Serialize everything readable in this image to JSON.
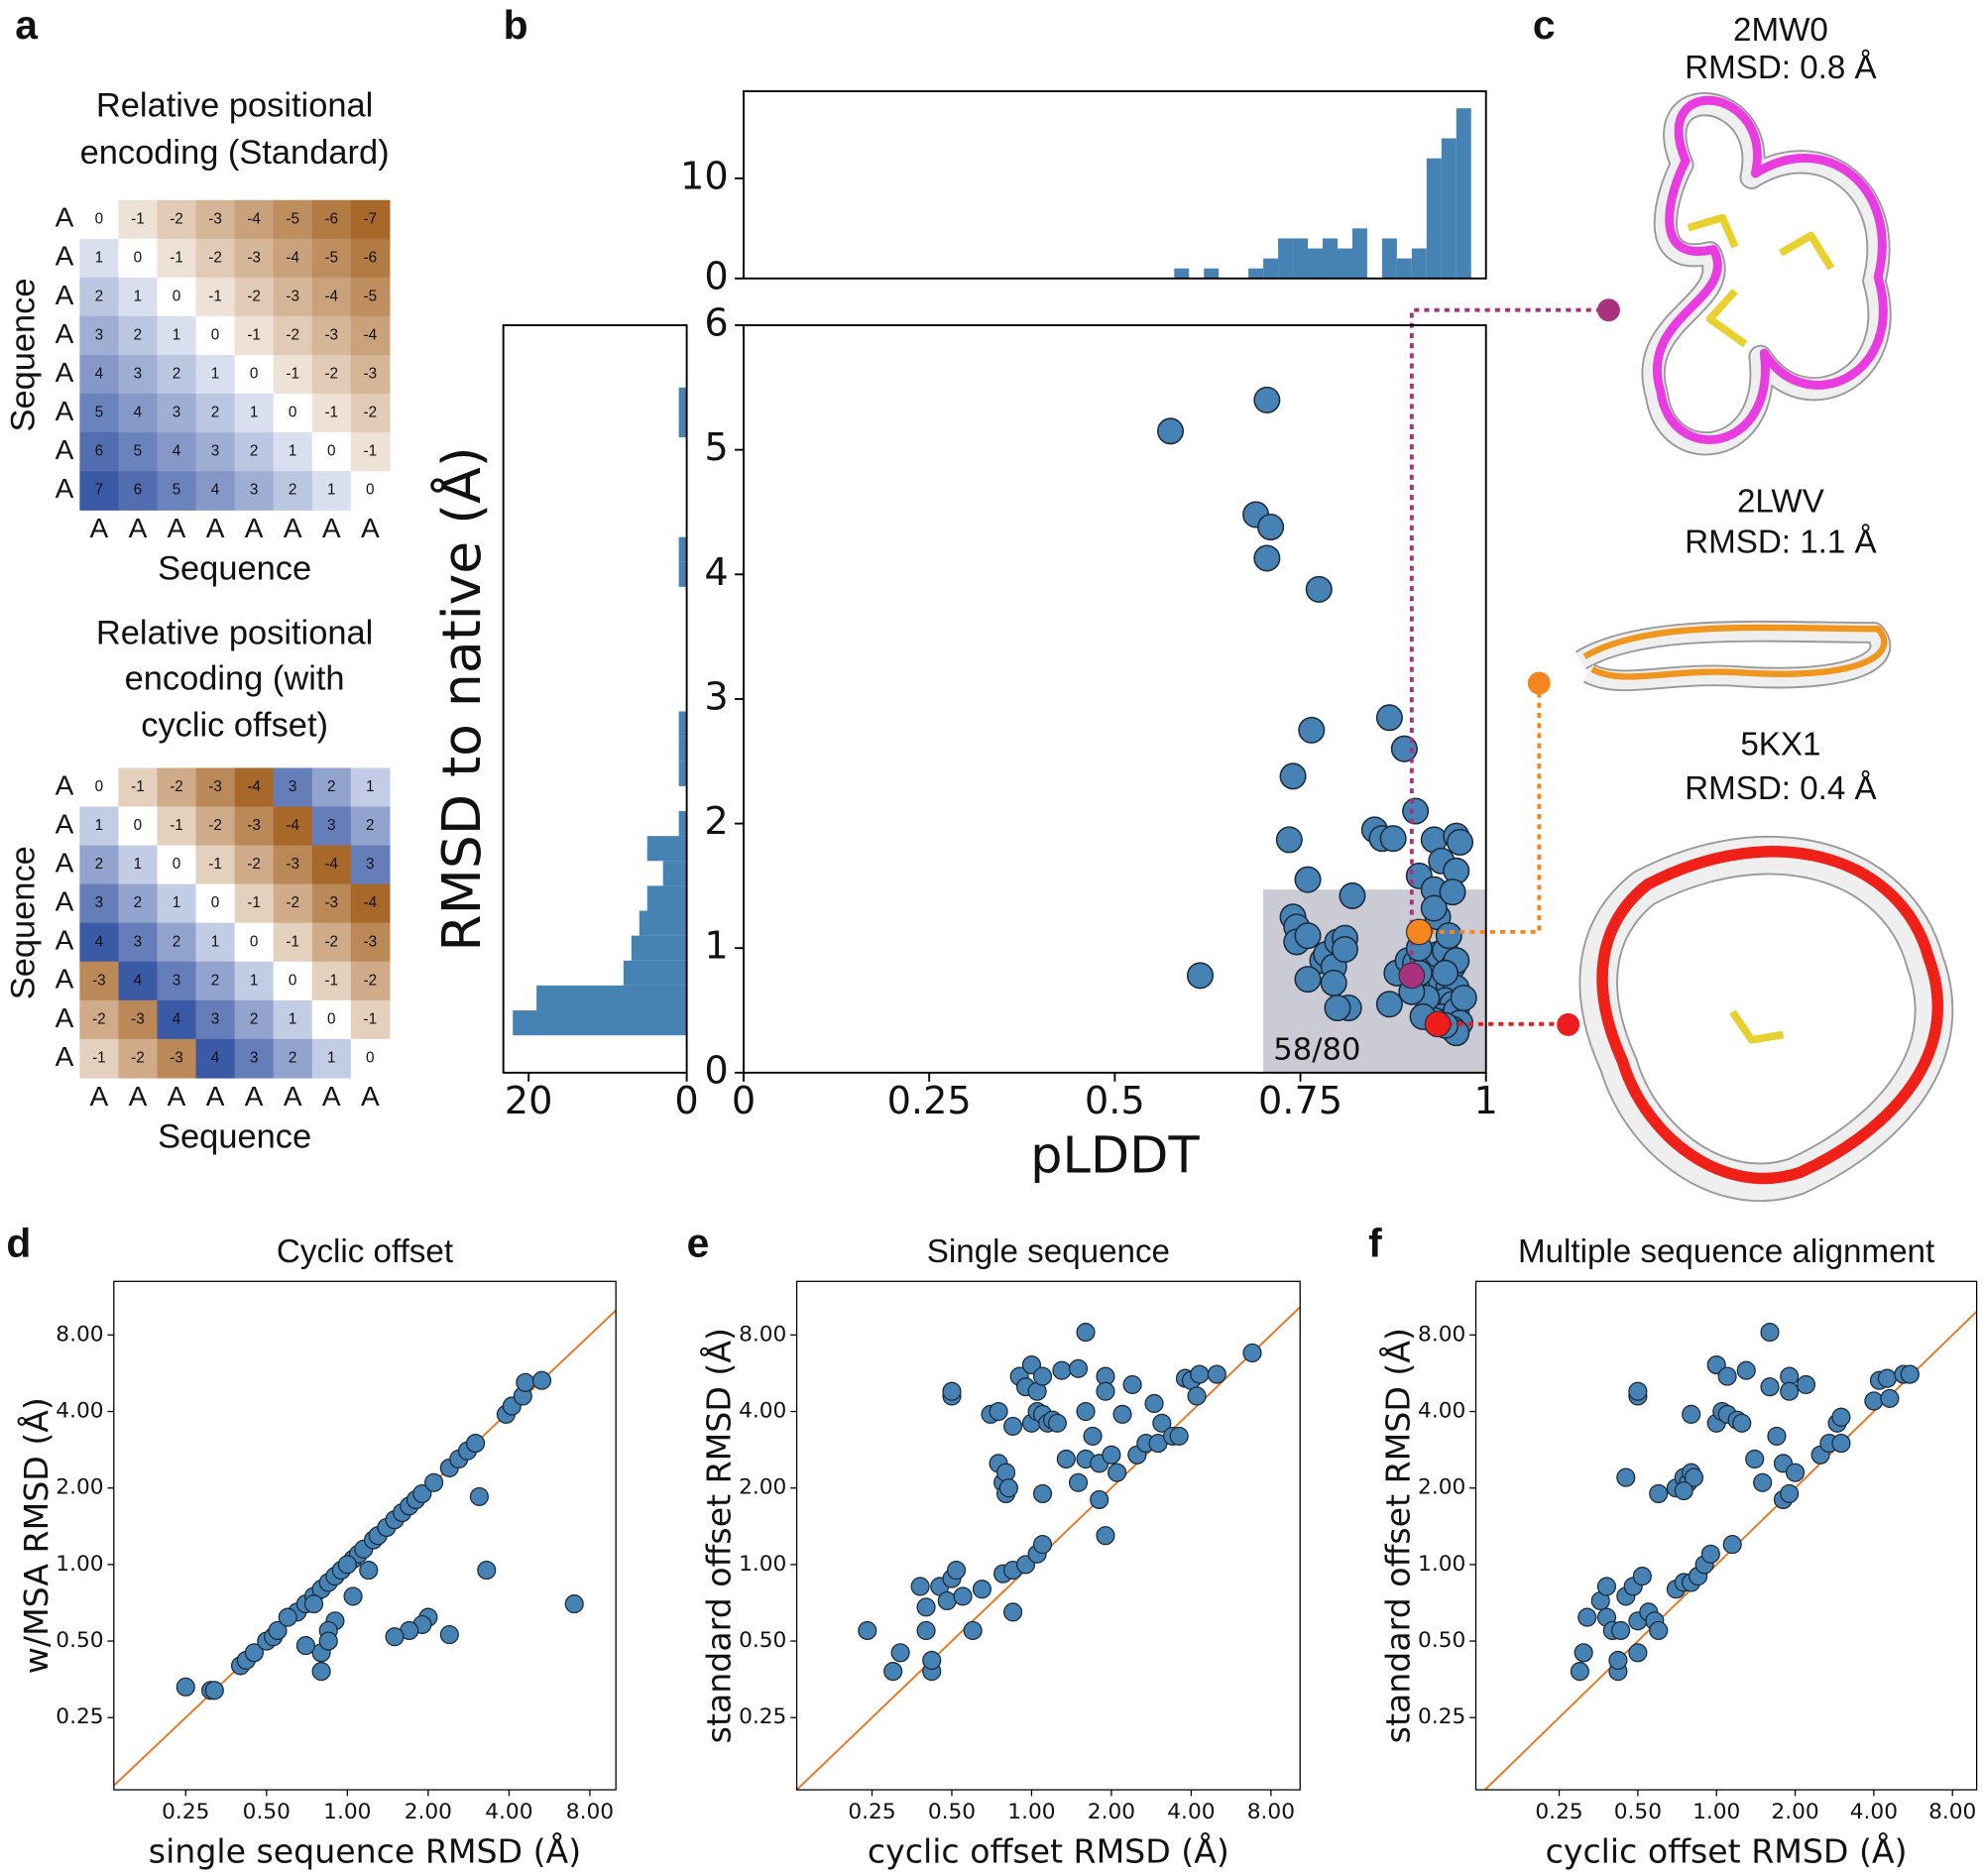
{
  "panel_labels": [
    "a",
    "b",
    "c",
    "d",
    "e",
    "f"
  ],
  "chart_data": [
    {
      "type": "heatmap",
      "title": [
        "Relative positional",
        "encoding (Standard)"
      ],
      "row_labels": [
        "A",
        "A",
        "A",
        "A",
        "A",
        "A",
        "A",
        "A"
      ],
      "col_labels": [
        "A",
        "A",
        "A",
        "A",
        "A",
        "A",
        "A",
        "A"
      ],
      "xlabel": "Sequence",
      "ylabel": "Sequence",
      "colors": {
        "positive": "#3a5aa6",
        "negative": "#a8682a"
      },
      "values": [
        [
          0,
          -1,
          -2,
          -3,
          -4,
          -5,
          -6,
          -7
        ],
        [
          1,
          0,
          -1,
          -2,
          -3,
          -4,
          -5,
          -6
        ],
        [
          2,
          1,
          0,
          -1,
          -2,
          -3,
          -4,
          -5
        ],
        [
          3,
          2,
          1,
          0,
          -1,
          -2,
          -3,
          -4
        ],
        [
          4,
          3,
          2,
          1,
          0,
          -1,
          -2,
          -3
        ],
        [
          5,
          4,
          3,
          2,
          1,
          0,
          -1,
          -2
        ],
        [
          6,
          5,
          4,
          3,
          2,
          1,
          0,
          -1
        ],
        [
          7,
          6,
          5,
          4,
          3,
          2,
          1,
          0
        ]
      ]
    },
    {
      "type": "heatmap",
      "title": [
        "Relative positional",
        "encoding (with",
        "cyclic offset)"
      ],
      "row_labels": [
        "A",
        "A",
        "A",
        "A",
        "A",
        "A",
        "A",
        "A"
      ],
      "col_labels": [
        "A",
        "A",
        "A",
        "A",
        "A",
        "A",
        "A",
        "A"
      ],
      "xlabel": "Sequence",
      "ylabel": "Sequence",
      "colors": {
        "positive": "#3a5aa6",
        "negative": "#a8682a"
      },
      "values": [
        [
          0,
          -1,
          -2,
          -3,
          -4,
          3,
          2,
          1
        ],
        [
          1,
          0,
          -1,
          -2,
          -3,
          -4,
          3,
          2
        ],
        [
          2,
          1,
          0,
          -1,
          -2,
          -3,
          -4,
          3
        ],
        [
          3,
          2,
          1,
          0,
          -1,
          -2,
          -3,
          -4
        ],
        [
          4,
          3,
          2,
          1,
          0,
          -1,
          -2,
          -3
        ],
        [
          -3,
          4,
          3,
          2,
          1,
          0,
          -1,
          -2
        ],
        [
          -2,
          -3,
          4,
          3,
          2,
          1,
          0,
          -1
        ],
        [
          -1,
          -2,
          -3,
          4,
          3,
          2,
          1,
          0
        ]
      ]
    },
    {
      "type": "scatter",
      "xlabel": "pLDDT",
      "ylabel": "RMSD to native (Å)",
      "xlim": [
        0,
        1
      ],
      "ylim": [
        0,
        6
      ],
      "xticks": [
        0,
        0.25,
        0.5,
        0.75,
        1
      ],
      "yticks": [
        0,
        1,
        2,
        3,
        4,
        5,
        6
      ],
      "color": "#4682b4",
      "x": [
        0.575,
        0.705,
        0.69,
        0.71,
        0.705,
        0.775,
        0.615,
        0.765,
        0.74,
        0.87,
        0.89,
        0.735,
        0.76,
        0.85,
        0.86,
        0.875,
        0.905,
        0.93,
        0.96,
        0.965,
        0.94,
        0.91,
        0.93,
        0.935,
        0.93,
        0.96,
        0.955,
        0.82,
        0.74,
        0.745,
        0.745,
        0.76,
        0.78,
        0.785,
        0.795,
        0.8,
        0.81,
        0.81,
        0.795,
        0.76,
        0.815,
        0.8,
        0.87,
        0.88,
        0.895,
        0.905,
        0.915,
        0.925,
        0.935,
        0.945,
        0.955,
        0.96,
        0.92,
        0.93,
        0.94,
        0.95,
        0.96,
        0.925,
        0.935,
        0.945,
        0.955,
        0.94,
        0.95,
        0.96,
        0.965,
        0.955,
        0.96,
        0.945,
        0.93,
        0.92,
        0.91,
        0.91,
        0.97,
        0.9,
        0.915,
        0.95,
        0.945
      ],
      "values": [
        5.15,
        5.4,
        4.48,
        4.38,
        4.13,
        3.88,
        0.78,
        2.75,
        2.38,
        2.85,
        2.6,
        1.87,
        1.55,
        1.95,
        1.88,
        1.88,
        2.1,
        1.87,
        1.9,
        1.85,
        1.7,
        1.58,
        1.47,
        1.25,
        1.32,
        1.62,
        1.45,
        1.42,
        1.25,
        1.17,
        1.05,
        1.1,
        0.9,
        0.95,
        0.85,
        1.05,
        1.08,
        0.99,
        0.72,
        0.75,
        0.52,
        0.52,
        0.55,
        0.8,
        0.9,
        0.88,
        0.92,
        0.9,
        0.95,
        0.98,
        0.85,
        0.9,
        0.7,
        0.65,
        0.72,
        0.7,
        0.68,
        0.55,
        0.5,
        0.58,
        0.55,
        0.45,
        0.42,
        0.5,
        0.4,
        0.35,
        0.32,
        0.38,
        0.42,
        0.6,
        0.8,
        1.0,
        0.6,
        0.65,
        0.45,
        1.1,
        0.8
      ],
      "highlights": {
        "x": [
          0.9,
          0.91,
          0.935
        ],
        "values": [
          0.78,
          1.13,
          0.39
        ],
        "colors": [
          "#a8327e",
          "#f5861f",
          "#ee1c1c"
        ]
      },
      "region": {
        "xlim": [
          0.7,
          1
        ],
        "ylim": [
          0,
          1.47
        ],
        "label": "58/80",
        "color": "#cbcbd6"
      }
    },
    {
      "type": "histogram",
      "orientation": "vertical",
      "color": "#4682b4",
      "xlim": [
        0,
        1
      ],
      "ylim": [
        0,
        18.7
      ],
      "yticks": [
        0,
        10
      ],
      "bins": [
        0.56,
        0.58,
        0.6,
        0.62,
        0.64,
        0.66,
        0.68,
        0.7,
        0.72,
        0.74,
        0.76,
        0.78,
        0.8,
        0.82,
        0.84,
        0.86,
        0.88,
        0.9,
        0.92,
        0.94,
        0.96,
        0.98
      ],
      "values": [
        0,
        1,
        0,
        1,
        0,
        0,
        1,
        2,
        4,
        4,
        3,
        4,
        3,
        5,
        0,
        4,
        2,
        3,
        12,
        14,
        17
      ]
    },
    {
      "type": "histogram",
      "orientation": "horizontal",
      "color": "#4682b4",
      "xlim": [
        23.2,
        0
      ],
      "xticks": [
        20,
        0
      ],
      "ylim": [
        0,
        6
      ],
      "bins": [
        0.3,
        0.5,
        0.7,
        0.9,
        1.1,
        1.3,
        1.5,
        1.7,
        1.9,
        2.1,
        2.3,
        2.5,
        2.7,
        2.9,
        3.1,
        3.3,
        3.5,
        3.7,
        3.9,
        4.1,
        4.3,
        4.5,
        4.7,
        4.9,
        5.1,
        5.3,
        5.5
      ],
      "values": [
        22,
        19,
        8,
        7,
        6,
        5,
        3,
        5,
        1,
        0,
        1,
        1,
        1,
        0,
        0,
        0,
        0,
        0,
        1,
        1,
        0,
        0,
        0,
        0,
        1,
        1
      ]
    },
    {
      "type": "scatter",
      "log_scale": true,
      "title": "Cyclic offset",
      "xlabel": "single sequence RMSD (Å)",
      "ylabel": "w/MSA RMSD (Å)",
      "color": "#4682b4",
      "diagonal_color": "#e8761e",
      "xlim": [
        0.135,
        10
      ],
      "ylim": [
        0.13,
        13
      ],
      "xticks": [
        0.25,
        {
          "value": 0.5,
          "label": "0.50"
        },
        {
          "value": 1,
          "label": "1.00"
        },
        {
          "value": 2,
          "label": "2.00"
        },
        {
          "value": 4,
          "label": "4.00"
        },
        {
          "value": 8,
          "label": "8.00"
        }
      ],
      "yticks": [
        0.25,
        {
          "value": 0.5,
          "label": "0.50"
        },
        {
          "value": 1,
          "label": "1.00"
        },
        {
          "value": 2,
          "label": "2.00"
        },
        {
          "value": 4,
          "label": "4.00"
        },
        {
          "value": 8,
          "label": "8.00"
        }
      ],
      "x": [
        0.25,
        0.31,
        0.32,
        0.4,
        0.42,
        0.45,
        0.5,
        0.53,
        0.55,
        0.65,
        0.7,
        0.75,
        0.8,
        0.85,
        0.9,
        0.95,
        1.05,
        1.1,
        1.15,
        1.25,
        1.3,
        1.4,
        1.5,
        1.6,
        1.7,
        1.8,
        1.9,
        2.1,
        2.4,
        2.6,
        2.8,
        3.0,
        3.9,
        4.1,
        4.5,
        4.6,
        5.3,
        3.1,
        3.3,
        7.0,
        2.4,
        2.0,
        1.9,
        1.7,
        1.5,
        1.05,
        0.9,
        0.85,
        0.8,
        0.8,
        0.85,
        0.7,
        0.75,
        0.6,
        1.0,
        1.2
      ],
      "values": [
        0.33,
        0.32,
        0.32,
        0.4,
        0.42,
        0.45,
        0.5,
        0.52,
        0.55,
        0.65,
        0.7,
        0.75,
        0.8,
        0.85,
        0.9,
        0.95,
        1.05,
        1.1,
        1.15,
        1.25,
        1.3,
        1.4,
        1.5,
        1.6,
        1.7,
        1.8,
        1.9,
        2.1,
        2.4,
        2.6,
        2.8,
        3.0,
        3.9,
        4.2,
        4.6,
        5.2,
        5.3,
        1.85,
        0.95,
        0.7,
        0.53,
        0.62,
        0.58,
        0.55,
        0.52,
        0.75,
        0.6,
        0.55,
        0.45,
        0.38,
        0.5,
        0.48,
        0.7,
        0.62,
        1.0,
        0.95
      ]
    },
    {
      "type": "scatter",
      "log_scale": true,
      "title": "Single sequence",
      "xlabel": "cyclic offset RMSD (Å)",
      "ylabel": "standard offset RMSD (Å)",
      "color": "#4682b4",
      "diagonal_color": "#e8761e",
      "xlim": [
        0.13,
        10.3
      ],
      "ylim": [
        0.13,
        13
      ],
      "xticks": [
        0.25,
        {
          "value": 0.5,
          "label": "0.50"
        },
        {
          "value": 1,
          "label": "1.00"
        },
        {
          "value": 2,
          "label": "2.00"
        },
        {
          "value": 4,
          "label": "4.00"
        },
        {
          "value": 8,
          "label": "8.00"
        }
      ],
      "yticks": [
        0.25,
        {
          "value": 0.5,
          "label": "0.50"
        },
        {
          "value": 1,
          "label": "1.00"
        },
        {
          "value": 2,
          "label": "2.00"
        },
        {
          "value": 4,
          "label": "4.00"
        },
        {
          "value": 8,
          "label": "8.00"
        }
      ],
      "x": [
        0.24,
        0.3,
        0.32,
        0.38,
        0.4,
        0.42,
        0.42,
        0.4,
        0.45,
        0.48,
        0.5,
        0.52,
        0.5,
        0.5,
        0.55,
        0.6,
        0.65,
        0.7,
        0.75,
        0.75,
        0.78,
        0.8,
        0.8,
        0.82,
        0.78,
        0.85,
        0.85,
        0.85,
        0.9,
        0.95,
        0.95,
        1.0,
        1.0,
        1.05,
        1.05,
        1.1,
        1.1,
        1.15,
        1.2,
        1.25,
        1.3,
        1.35,
        1.1,
        1.05,
        1.1,
        1.5,
        1.5,
        1.6,
        1.6,
        1.6,
        1.7,
        1.8,
        1.9,
        1.9,
        1.8,
        1.9,
        2.0,
        2.1,
        2.2,
        2.4,
        2.5,
        2.7,
        2.9,
        3.0,
        3.1,
        3.4,
        3.6,
        3.8,
        4.0,
        4.2,
        4.3,
        5.0,
        6.8
      ],
      "values": [
        0.55,
        0.38,
        0.45,
        0.82,
        0.55,
        0.38,
        0.42,
        0.68,
        0.82,
        0.72,
        0.88,
        0.95,
        4.6,
        4.8,
        0.75,
        0.55,
        0.8,
        3.9,
        4.0,
        2.5,
        2.1,
        2.3,
        1.9,
        2.0,
        0.92,
        0.65,
        0.95,
        3.5,
        5.5,
        1.0,
        5.0,
        6.1,
        3.6,
        4.8,
        4.0,
        5.5,
        3.9,
        3.6,
        3.7,
        3.6,
        5.8,
        2.6,
        1.9,
        1.1,
        1.2,
        5.9,
        2.1,
        8.2,
        2.6,
        4.0,
        3.2,
        2.5,
        5.5,
        4.8,
        1.8,
        1.3,
        2.7,
        2.3,
        3.9,
        5.1,
        2.7,
        3.0,
        4.3,
        3.0,
        3.6,
        3.2,
        3.2,
        5.4,
        5.3,
        4.6,
        5.6,
        5.6,
        6.8
      ]
    },
    {
      "type": "scatter",
      "log_scale": true,
      "title": "Multiple sequence alignment",
      "xlabel": "cyclic offset RMSD (Å)",
      "ylabel": "standard offset RMSD (Å)",
      "color": "#4682b4",
      "diagonal_color": "#e8761e",
      "xlim": [
        0.12,
        9.9
      ],
      "ylim": [
        0.13,
        13
      ],
      "xticks": [
        0.25,
        {
          "value": 0.5,
          "label": "0.50"
        },
        {
          "value": 1,
          "label": "1.00"
        },
        {
          "value": 2,
          "label": "2.00"
        },
        {
          "value": 4,
          "label": "4.00"
        },
        {
          "value": 8,
          "label": "8.00"
        }
      ],
      "yticks": [
        0.25,
        {
          "value": 0.5,
          "label": "0.50"
        },
        {
          "value": 1,
          "label": "1.00"
        },
        {
          "value": 2,
          "label": "2.00"
        },
        {
          "value": 4,
          "label": "4.00"
        },
        {
          "value": 8,
          "label": "8.00"
        }
      ],
      "x": [
        0.3,
        0.31,
        0.32,
        0.36,
        0.38,
        0.38,
        0.4,
        0.42,
        0.42,
        0.43,
        0.45,
        0.45,
        0.48,
        0.5,
        0.5,
        0.52,
        0.5,
        0.5,
        0.55,
        0.58,
        0.6,
        0.6,
        0.7,
        0.75,
        0.78,
        0.8,
        0.82,
        0.75,
        0.7,
        0.75,
        0.8,
        0.85,
        0.8,
        0.9,
        0.95,
        1.0,
        1.0,
        1.05,
        1.1,
        1.1,
        1.2,
        1.25,
        1.3,
        1.15,
        1.4,
        1.5,
        1.6,
        1.6,
        1.7,
        1.8,
        1.9,
        1.9,
        1.8,
        1.9,
        2.0,
        2.2,
        2.5,
        2.7,
        2.9,
        3.0,
        3.0,
        4.0,
        4.2,
        4.5,
        4.6,
        5.2,
        5.5
      ],
      "values": [
        0.38,
        0.45,
        0.62,
        0.72,
        0.82,
        0.62,
        0.55,
        0.38,
        0.42,
        0.55,
        2.2,
        0.75,
        0.82,
        0.6,
        0.45,
        0.9,
        4.6,
        4.8,
        0.65,
        0.6,
        0.55,
        1.9,
        2.0,
        2.2,
        2.1,
        2.3,
        2.2,
        1.95,
        0.8,
        0.85,
        0.85,
        0.9,
        3.9,
        1.0,
        1.1,
        3.6,
        6.1,
        4.0,
        5.5,
        3.9,
        3.7,
        3.6,
        5.8,
        1.2,
        2.6,
        2.1,
        8.2,
        5.0,
        3.2,
        2.5,
        5.5,
        4.8,
        1.8,
        1.9,
        2.3,
        5.1,
        2.7,
        3.0,
        3.6,
        3.0,
        3.8,
        4.4,
        5.3,
        5.4,
        4.5,
        5.6,
        5.6
      ]
    }
  ],
  "structures": [
    {
      "id": "2MW0",
      "rmsd": "RMSD: 0.8 Å",
      "color": "#e83ce0"
    },
    {
      "id": "2LWV",
      "rmsd": "RMSD: 1.1 Å",
      "color": "#f0961e"
    },
    {
      "id": "5KX1",
      "rmsd": "RMSD: 0.4 Å",
      "color": "#ee2018"
    }
  ]
}
